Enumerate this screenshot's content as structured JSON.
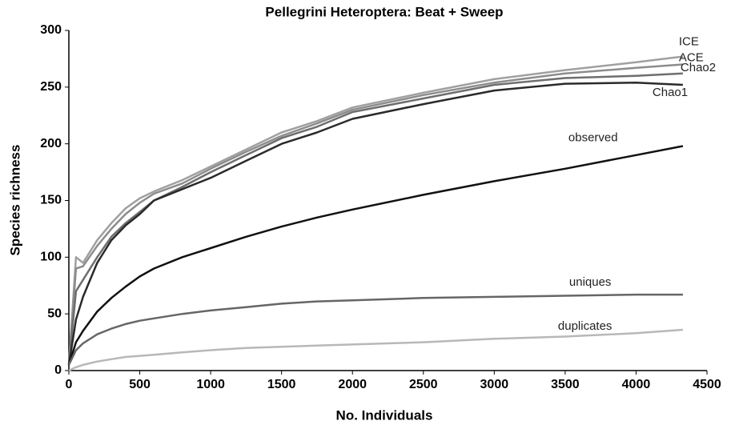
{
  "chart_data": {
    "type": "line",
    "title": "Pellegrini Heteroptera: Beat + Sweep",
    "x_label": "No. Individuals",
    "y_label": "Species richness",
    "x": [
      0,
      50,
      100,
      200,
      300,
      400,
      500,
      600,
      800,
      1000,
      1250,
      1500,
      1750,
      2000,
      2500,
      3000,
      3500,
      4000,
      4330
    ],
    "series": [
      {
        "name": "ICE",
        "color": "#a0a0a0",
        "values": [
          5,
          100,
          95,
          115,
          130,
          143,
          152,
          158,
          168,
          180,
          195,
          210,
          220,
          232,
          245,
          257,
          265,
          272,
          277
        ]
      },
      {
        "name": "ACE",
        "color": "#8c8c8c",
        "values": [
          5,
          90,
          92,
          110,
          125,
          138,
          148,
          156,
          165,
          178,
          193,
          207,
          218,
          230,
          243,
          254,
          262,
          267,
          270
        ]
      },
      {
        "name": "Chao2",
        "color": "#6e6e6e",
        "values": [
          5,
          70,
          80,
          100,
          118,
          130,
          140,
          150,
          162,
          175,
          190,
          205,
          215,
          228,
          240,
          252,
          258,
          260,
          262
        ]
      },
      {
        "name": "Chao1",
        "color": "#2a2a2a",
        "values": [
          5,
          45,
          65,
          95,
          115,
          128,
          138,
          150,
          160,
          170,
          185,
          200,
          210,
          222,
          235,
          247,
          253,
          254,
          252
        ]
      },
      {
        "name": "observed",
        "color": "#111111",
        "values": [
          5,
          25,
          35,
          52,
          64,
          74,
          83,
          90,
          100,
          108,
          118,
          127,
          135,
          142,
          155,
          167,
          178,
          190,
          198
        ]
      },
      {
        "name": "uniques",
        "color": "#666666",
        "values": [
          5,
          18,
          24,
          32,
          37,
          41,
          44,
          46,
          50,
          53,
          56,
          59,
          61,
          62,
          64,
          65,
          66,
          67,
          67
        ]
      },
      {
        "name": "duplicates",
        "color": "#b8b8b8",
        "values": [
          0,
          3,
          5,
          8,
          10,
          12,
          13,
          14,
          16,
          18,
          20,
          21,
          22,
          23,
          25,
          28,
          30,
          33,
          36
        ]
      }
    ],
    "xlim": [
      0,
      4500
    ],
    "xticks": [
      0,
      500,
      1000,
      1500,
      2000,
      2500,
      3000,
      3500,
      4000,
      4500
    ],
    "ylim": [
      0,
      300
    ],
    "yticks": [
      0,
      50,
      100,
      150,
      200,
      250,
      300
    ]
  }
}
